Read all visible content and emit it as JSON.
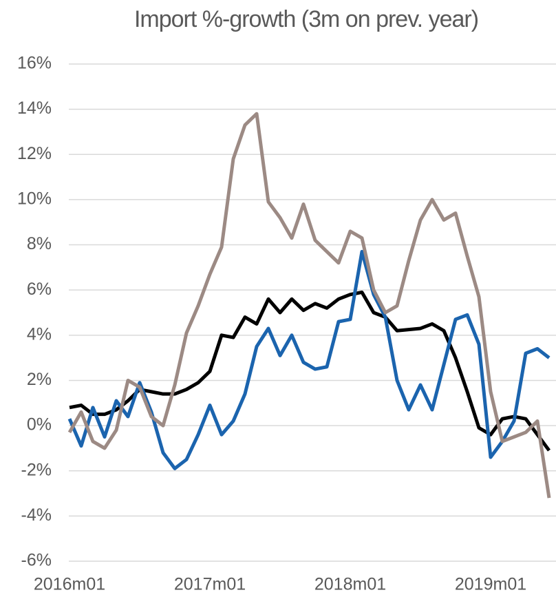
{
  "chart_data": {
    "type": "line",
    "title": "Import %-growth (3m on prev. year)",
    "categories": [
      "2016m01",
      null,
      null,
      null,
      null,
      null,
      null,
      null,
      null,
      null,
      null,
      null,
      "2017m01",
      null,
      null,
      null,
      null,
      null,
      null,
      null,
      null,
      null,
      null,
      null,
      "2018m01",
      null,
      null,
      null,
      null,
      null,
      null,
      null,
      null,
      null,
      null,
      null,
      "2019m01",
      null,
      null,
      null,
      null,
      null
    ],
    "series": [
      {
        "color": "#000000",
        "values": [
          0.8,
          0.9,
          0.5,
          0.5,
          0.7,
          1.1,
          1.6,
          1.5,
          1.4,
          1.4,
          1.6,
          1.9,
          2.4,
          4.0,
          3.9,
          4.8,
          4.5,
          5.6,
          5.0,
          5.6,
          5.1,
          5.4,
          5.2,
          5.6,
          5.8,
          5.9,
          5.0,
          4.8,
          4.2,
          4.25,
          4.3,
          4.5,
          4.2,
          3.0,
          1.5,
          -0.1,
          -0.4,
          0.3,
          0.4,
          0.3,
          -0.4,
          -1.1
        ]
      },
      {
        "color": "#1b64ae",
        "values": [
          0.3,
          -0.9,
          0.8,
          -0.5,
          1.1,
          0.4,
          1.9,
          0.6,
          -1.2,
          -1.9,
          -1.5,
          -0.4,
          0.9,
          -0.4,
          0.2,
          1.4,
          3.5,
          4.3,
          3.1,
          4.0,
          2.8,
          2.5,
          2.6,
          4.6,
          4.7,
          7.7,
          5.8,
          4.8,
          2.0,
          0.7,
          1.8,
          0.7,
          2.7,
          4.7,
          4.9,
          3.6,
          -1.4,
          -0.7,
          0.2,
          3.2,
          3.4,
          3.0
        ]
      },
      {
        "color": "#9c8a84",
        "values": [
          -0.3,
          0.6,
          -0.7,
          -1.0,
          -0.2,
          2.0,
          1.7,
          0.4,
          0.0,
          1.8,
          4.1,
          5.3,
          6.7,
          7.9,
          11.8,
          13.3,
          13.8,
          9.9,
          9.2,
          8.3,
          9.8,
          8.2,
          7.7,
          7.2,
          8.6,
          8.3,
          6.0,
          5.0,
          5.3,
          7.3,
          9.1,
          10.0,
          9.1,
          9.4,
          7.5,
          5.7,
          1.5,
          -0.7,
          -0.5,
          -0.3,
          0.2,
          -3.2
        ]
      }
    ],
    "ylim": [
      -6,
      16
    ],
    "yticks": [
      {
        "value": -6,
        "label": "-6%"
      },
      {
        "value": -4,
        "label": "-4%"
      },
      {
        "value": -2,
        "label": "-2%"
      },
      {
        "value": 0,
        "label": "0%"
      },
      {
        "value": 2,
        "label": "2%"
      },
      {
        "value": 4,
        "label": "4%"
      },
      {
        "value": 6,
        "label": "6%"
      },
      {
        "value": 8,
        "label": "8%"
      },
      {
        "value": 10,
        "label": "10%"
      },
      {
        "value": 12,
        "label": "12%"
      },
      {
        "value": 14,
        "label": "14%"
      },
      {
        "value": 16,
        "label": "16%"
      }
    ],
    "grid": true
  }
}
